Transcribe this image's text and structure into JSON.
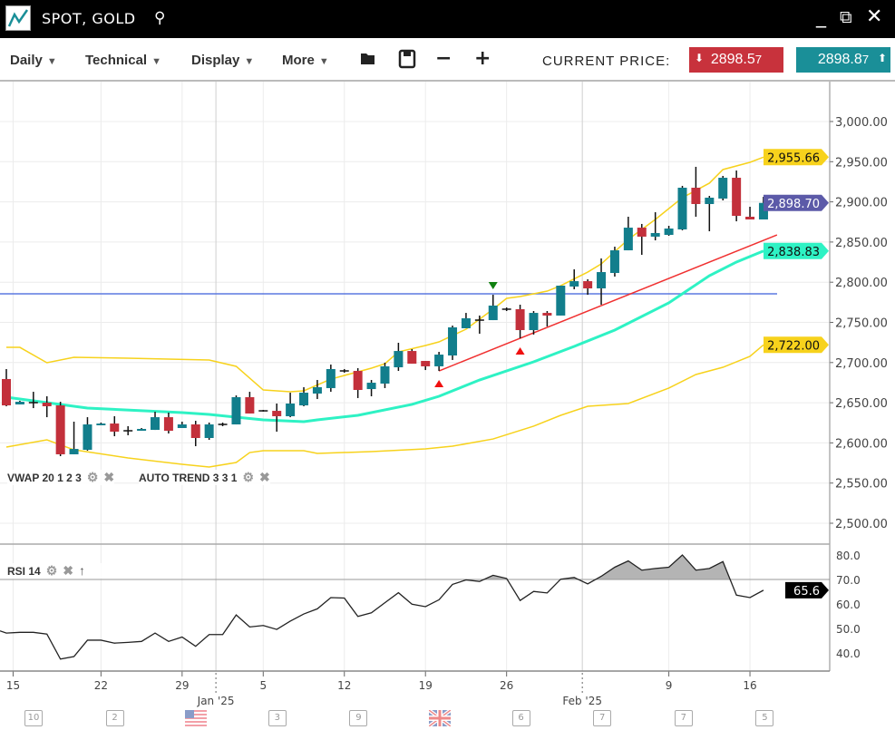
{
  "window": {
    "title": "SPOT, GOLD",
    "icons": [
      "chart-logo-icon",
      "search-icon",
      "minimize-icon",
      "popout-icon",
      "close-icon"
    ]
  },
  "toolbar": {
    "menus": [
      "Daily",
      "Technical",
      "Display",
      "More"
    ],
    "tools": [
      "folder-open-icon",
      "save-icon",
      "zoom-out-icon",
      "zoom-in-icon"
    ],
    "current_price_label": "CURRENT PRICE:",
    "bid": {
      "main": "2898.5",
      "sub": "7"
    },
    "ask": {
      "main": "2898.8",
      "sub": "7"
    },
    "bid_color": "#c8323c",
    "ask_color": "#1a8f98"
  },
  "legends": {
    "vwap": "VWAP 20 1 2 3",
    "auto_trend": "AUTO TREND 3 3 1",
    "rsi": "RSI 14"
  },
  "chart_data": {
    "type": "candlestick",
    "colors": {
      "up": "#127e8c",
      "down": "#c3303b",
      "bands": "#f7d21c",
      "mid": "#2ef2c4",
      "trend": "#f03030",
      "hline": "#5b78e0"
    },
    "price_axis": {
      "ylim": [
        2470,
        3045
      ],
      "ticks": [
        "3,000.00",
        "2,950.00",
        "2,900.00",
        "2,850.00",
        "2,800.00",
        "2,750.00",
        "2,700.00",
        "2,650.00",
        "2,600.00",
        "2,550.00",
        "2,500.00"
      ],
      "tick_values": [
        3000,
        2950,
        2900,
        2850,
        2800,
        2750,
        2700,
        2650,
        2600,
        2550,
        2500
      ]
    },
    "price_tags": [
      {
        "label": "2,955.66",
        "value": 2955.66,
        "color": "#f7d21c"
      },
      {
        "label": "2,898.70",
        "value": 2898.7,
        "color": "#5c5aa8"
      },
      {
        "label": "2,838.83",
        "value": 2838.83,
        "color": "#2ef2c4"
      },
      {
        "label": "2,722.00",
        "value": 2722.0,
        "color": "#f7d21c"
      }
    ],
    "candles": [
      [
        2679.5,
        2691.9,
        2645.6,
        2646.7
      ],
      [
        2647.9,
        2652.4,
        2647.9,
        2651.2
      ],
      [
        2650.1,
        2663.6,
        2643.3,
        2650.1
      ],
      [
        2650.1,
        2658.0,
        2632.0,
        2645.6
      ],
      [
        2646.7,
        2651.2,
        2583.5,
        2585.8
      ],
      [
        2585.8,
        2626.4,
        2585.8,
        2592.5
      ],
      [
        2591.4,
        2632.0,
        2590.3,
        2623.0
      ],
      [
        2621.9,
        2625.3,
        2621.9,
        2624.1
      ],
      [
        2624.1,
        2633.2,
        2608.3,
        2614.0
      ],
      [
        2615.1,
        2620.8,
        2609.5,
        2615.1
      ],
      [
        2615.1,
        2618.5,
        2615.1,
        2617.4
      ],
      [
        2616.2,
        2638.8,
        2616.2,
        2632.0
      ],
      [
        2632.0,
        2637.7,
        2611.7,
        2615.1
      ],
      [
        2618.5,
        2626.4,
        2618.5,
        2623.0
      ],
      [
        2623.0,
        2627.5,
        2595.9,
        2606.1
      ],
      [
        2606.1,
        2625.3,
        2603.8,
        2623.0
      ],
      [
        2623.0,
        2625.3,
        2620.8,
        2623.0
      ],
      [
        2623.0,
        2659.1,
        2623.0,
        2656.9
      ],
      [
        2656.9,
        2663.6,
        2636.6,
        2636.6
      ],
      [
        2639.9,
        2641.0,
        2639.0,
        2639.9
      ],
      [
        2639.9,
        2649.0,
        2614.0,
        2633.2
      ],
      [
        2633.2,
        2662.5,
        2632.0,
        2649.0
      ],
      [
        2646.7,
        2669.3,
        2645.6,
        2662.5
      ],
      [
        2661.4,
        2678.3,
        2654.6,
        2669.3
      ],
      [
        2668.2,
        2697.5,
        2663.6,
        2691.9
      ],
      [
        2689.6,
        2691.9,
        2687.4,
        2689.6
      ],
      [
        2689.6,
        2693.0,
        2655.8,
        2665.9
      ],
      [
        2667.0,
        2678.3,
        2658.0,
        2674.9
      ],
      [
        2673.8,
        2699.8,
        2668.2,
        2695.3
      ],
      [
        2694.1,
        2724.6,
        2689.6,
        2714.4
      ],
      [
        2714.4,
        2716.7,
        2698.6,
        2698.6
      ],
      [
        2702.0,
        2702.0,
        2690.7,
        2695.3
      ],
      [
        2695.3,
        2713.3,
        2689.6,
        2709.9
      ],
      [
        2708.8,
        2746.0,
        2703.2,
        2743.8
      ],
      [
        2742.7,
        2761.8,
        2742.7,
        2755.1
      ],
      [
        2752.8,
        2758.5,
        2735.9,
        2752.8
      ],
      [
        2752.8,
        2784.4,
        2752.8,
        2770.9
      ],
      [
        2766.4,
        2768.6,
        2764.1,
        2766.4
      ],
      [
        2766.4,
        2772.0,
        2730.2,
        2740.4
      ],
      [
        2740.4,
        2764.1,
        2734.8,
        2761.8
      ],
      [
        2761.8,
        2764.1,
        2744.9,
        2758.5
      ],
      [
        2758.5,
        2795.7,
        2758.5,
        2795.7
      ],
      [
        2794.6,
        2816.0,
        2791.2,
        2801.3
      ],
      [
        2801.3,
        2803.6,
        2784.4,
        2792.3
      ],
      [
        2792.3,
        2829.6,
        2772.0,
        2812.6
      ],
      [
        2811.5,
        2844.2,
        2807.0,
        2839.7
      ],
      [
        2839.7,
        2881.5,
        2839.7,
        2867.9
      ],
      [
        2867.9,
        2872.5,
        2834.1,
        2856.7
      ],
      [
        2856.7,
        2887.1,
        2852.1,
        2861.2
      ],
      [
        2858.9,
        2870.2,
        2857.8,
        2866.8
      ],
      [
        2865.7,
        2919.9,
        2864.6,
        2917.6
      ],
      [
        2917.6,
        2943.6,
        2881.5,
        2897.3
      ],
      [
        2897.3,
        2907.4,
        2863.4,
        2905.2
      ],
      [
        2904.1,
        2932.3,
        2901.8,
        2930.0
      ],
      [
        2930.0,
        2939.0,
        2875.8,
        2882.6
      ],
      [
        2881.5,
        2893.9,
        2878.1,
        2878.1
      ],
      [
        2878.1,
        2906.3,
        2878.1,
        2898.7
      ]
    ],
    "upper_band": [
      [
        0,
        2718.9
      ],
      [
        1,
        2718.9
      ],
      [
        3,
        2699.8
      ],
      [
        5,
        2706.5
      ],
      [
        9,
        2705.4
      ],
      [
        15,
        2703.2
      ],
      [
        17,
        2695.3
      ],
      [
        19,
        2665.9
      ],
      [
        21,
        2663.6
      ],
      [
        22,
        2664.8
      ],
      [
        24,
        2679.4
      ],
      [
        27,
        2693.0
      ],
      [
        28,
        2698.6
      ],
      [
        29,
        2713.3
      ],
      [
        31,
        2721.2
      ],
      [
        32,
        2725.7
      ],
      [
        34,
        2741.5
      ],
      [
        36,
        2766.4
      ],
      [
        37,
        2779.9
      ],
      [
        38,
        2782.2
      ],
      [
        40,
        2788.9
      ],
      [
        41,
        2795.7
      ],
      [
        43,
        2812.6
      ],
      [
        44,
        2822.8
      ],
      [
        46,
        2853.3
      ],
      [
        48,
        2878.1
      ],
      [
        50,
        2905.2
      ],
      [
        52,
        2923.3
      ],
      [
        53,
        2940.2
      ],
      [
        55,
        2949.2
      ],
      [
        56,
        2955.66
      ]
    ],
    "lower_band": [
      [
        0,
        2594.8
      ],
      [
        3,
        2603.8
      ],
      [
        5,
        2591.4
      ],
      [
        9,
        2581.3
      ],
      [
        13,
        2573.3
      ],
      [
        15,
        2570.0
      ],
      [
        17,
        2575.6
      ],
      [
        18,
        2588.0
      ],
      [
        19,
        2590.3
      ],
      [
        22,
        2590.3
      ],
      [
        23,
        2586.9
      ],
      [
        27,
        2589.2
      ],
      [
        31,
        2592.5
      ],
      [
        33,
        2595.9
      ],
      [
        36,
        2604.9
      ],
      [
        39,
        2620.8
      ],
      [
        41,
        2634.3
      ],
      [
        43,
        2645.6
      ],
      [
        46,
        2649.0
      ],
      [
        49,
        2668.2
      ],
      [
        51,
        2685.1
      ],
      [
        53,
        2694.1
      ],
      [
        55,
        2707.7
      ],
      [
        56,
        2722.0
      ]
    ],
    "mid_line": [
      [
        0,
        2656.9
      ],
      [
        6,
        2643.3
      ],
      [
        13,
        2637.7
      ],
      [
        15,
        2635.4
      ],
      [
        19,
        2628.7
      ],
      [
        22,
        2626.4
      ],
      [
        23,
        2628.7
      ],
      [
        26,
        2634.3
      ],
      [
        30,
        2647.9
      ],
      [
        32,
        2658.0
      ],
      [
        35,
        2678.3
      ],
      [
        39,
        2700.9
      ],
      [
        42,
        2720.1
      ],
      [
        45,
        2740.4
      ],
      [
        49,
        2774.3
      ],
      [
        52,
        2808.1
      ],
      [
        54,
        2825.1
      ],
      [
        56,
        2838.83
      ]
    ],
    "trend_line": [
      [
        32,
        2689.6
      ],
      [
        57,
        2858.9
      ]
    ],
    "horizontal_line": 2785.5,
    "markers": [
      {
        "type": "signal-up",
        "candle": 32,
        "color": "#f01010"
      },
      {
        "type": "signal-up",
        "candle": 38,
        "color": "#f01010"
      },
      {
        "type": "signal-down",
        "candle": 36,
        "color": "#108010"
      }
    ],
    "rsi": {
      "ylim": [
        35,
        83
      ],
      "ticks": [
        "80.0",
        "70.0",
        "60.0",
        "50.0",
        "40.0"
      ],
      "tick_values": [
        80,
        70,
        60,
        50,
        40
      ],
      "overbought": 70,
      "current_label": "65.6",
      "values": [
        48.1,
        48.4,
        48.4,
        47.7,
        37.5,
        38.5,
        45.2,
        45.2,
        44.0,
        44.3,
        44.7,
        48.1,
        44.7,
        46.5,
        42.7,
        47.5,
        47.5,
        55.5,
        50.6,
        51.2,
        49.6,
        53.0,
        55.9,
        58.0,
        62.6,
        62.4,
        54.9,
        56.4,
        60.5,
        64.6,
        59.9,
        58.9,
        61.7,
        68.0,
        69.8,
        69.2,
        71.7,
        70.4,
        61.4,
        65.1,
        64.5,
        70.1,
        70.8,
        68.2,
        71.3,
        75.0,
        77.6,
        73.8,
        74.5,
        75.0,
        80.0,
        73.8,
        74.5,
        77.3,
        63.6,
        62.6,
        65.6
      ]
    },
    "x_ticks": [
      {
        "label": "15",
        "at": 0.5
      },
      {
        "label": "22",
        "at": 7
      },
      {
        "label": "29",
        "at": 13
      },
      {
        "label": "5",
        "at": 19
      },
      {
        "label": "12",
        "at": 25
      },
      {
        "label": "19",
        "at": 31
      },
      {
        "label": "26",
        "at": 37
      },
      {
        "label": "9",
        "at": 49
      },
      {
        "label": "16",
        "at": 55
      }
    ],
    "month_ticks": [
      {
        "label": "Jan '25",
        "at": 15.5
      },
      {
        "label": "Feb '25",
        "at": 42.6
      }
    ],
    "events": [
      {
        "type": "calendar",
        "label": "10"
      },
      {
        "type": "calendar",
        "label": "2"
      },
      {
        "type": "flag-us",
        "label": ""
      },
      {
        "type": "calendar",
        "label": "3"
      },
      {
        "type": "calendar",
        "label": "9"
      },
      {
        "type": "flag-uk",
        "label": ""
      },
      {
        "type": "calendar",
        "label": "6"
      },
      {
        "type": "calendar",
        "label": "7"
      },
      {
        "type": "calendar",
        "label": "7"
      },
      {
        "type": "calendar",
        "label": "5"
      }
    ]
  }
}
